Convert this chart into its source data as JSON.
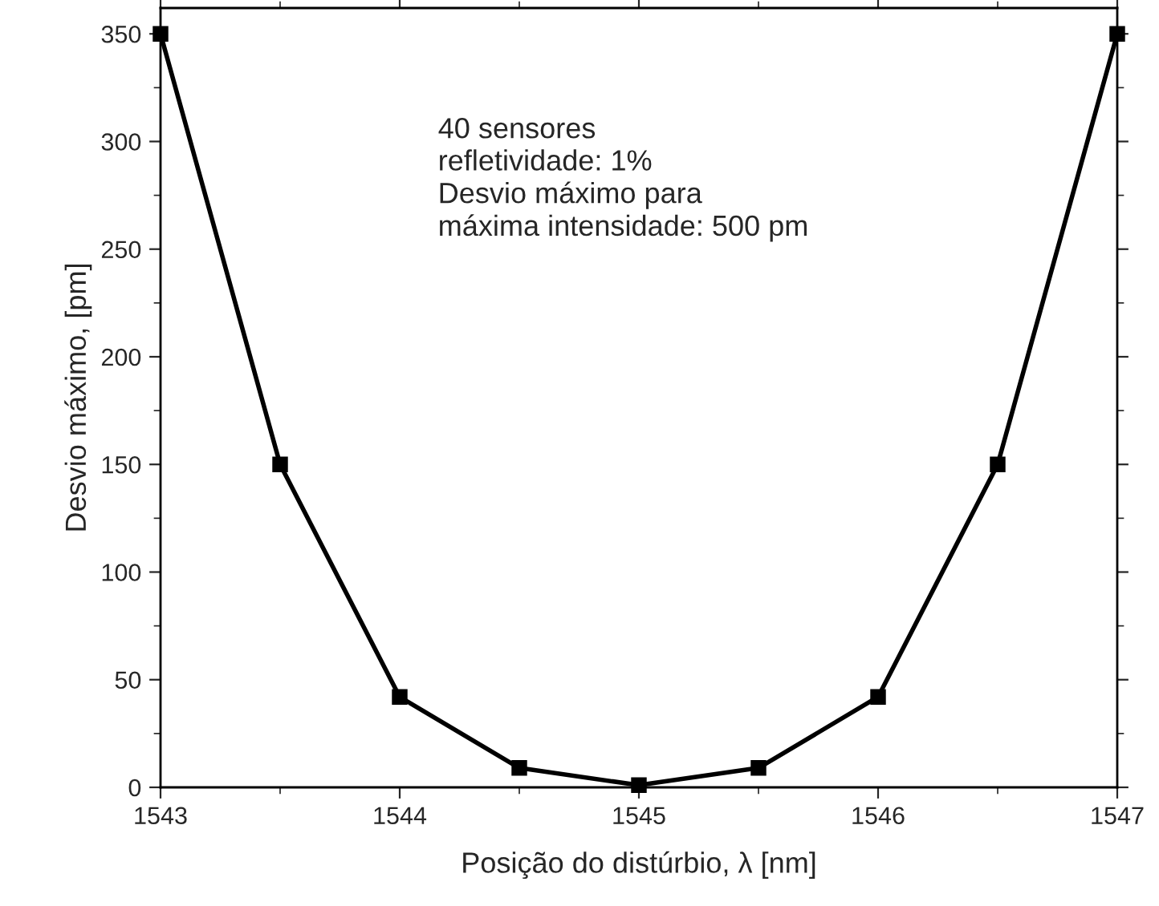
{
  "chart_data": {
    "type": "line",
    "xlabel": "Posição do distúrbio, λ [nm]",
    "ylabel": "Desvio máximo, [pm]",
    "x": [
      1543,
      1543.5,
      1544,
      1544.5,
      1545,
      1545.5,
      1546,
      1546.5,
      1547
    ],
    "series": [
      {
        "color": "#000000",
        "values": [
          350,
          150,
          42,
          9,
          1,
          9,
          42,
          150,
          350
        ]
      }
    ],
    "marker": "square",
    "line_style": "solid",
    "grid": false,
    "legend": false,
    "xlim": [
      1543,
      1547
    ],
    "xticks": [
      1543,
      1544,
      1545,
      1546,
      1547
    ],
    "ylim": [
      0,
      362
    ],
    "yticks": [
      0,
      50,
      100,
      150,
      200,
      250,
      300,
      350
    ],
    "annotations": [
      "40 sensores\nrefletividade: 1%\nDesvio máximo para\nmáxima intensidade: 500 pm"
    ]
  }
}
